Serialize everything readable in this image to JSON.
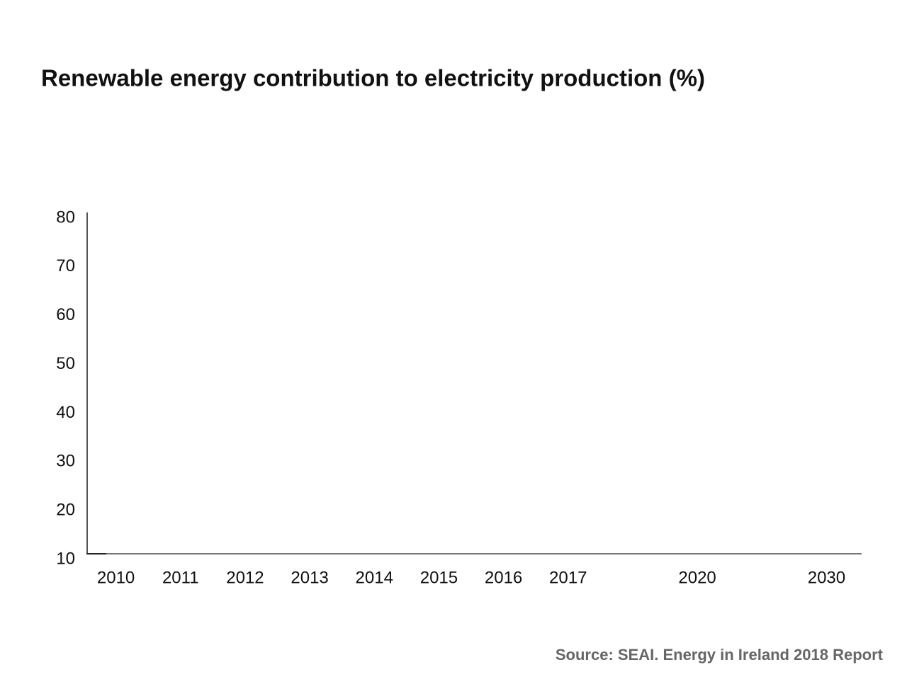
{
  "chart_data": {
    "type": "bar",
    "title": "Renewable energy contribution to electricity production (%)",
    "source": "Source: SEAI. Energy in Ireland 2018 Report",
    "categories": [
      "2010",
      "2011",
      "2012",
      "2013",
      "2014",
      "2015",
      "2016",
      "2017",
      null,
      "2020",
      null,
      "2030"
    ],
    "ylim": [
      10,
      80
    ],
    "yticks": [
      10,
      20,
      30,
      40,
      50,
      60,
      70,
      80
    ],
    "grid": false
  }
}
